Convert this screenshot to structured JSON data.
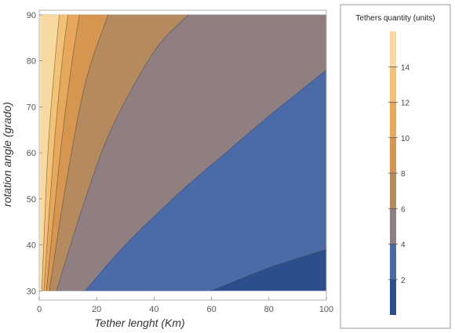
{
  "chart_data": {
    "type": "contour",
    "xlabel": "Tether lenght (Km)",
    "ylabel": "rotation angle (grado)",
    "xlim": [
      0,
      100
    ],
    "ylim": [
      28,
      91
    ],
    "x_ticks": [
      "0",
      "20",
      "40",
      "60",
      "80",
      "100"
    ],
    "y_ticks": [
      "30",
      "40",
      "50",
      "60",
      "70",
      "80",
      "90"
    ],
    "x_tick_values": [
      0,
      20,
      40,
      60,
      80,
      100
    ],
    "y_tick_values": [
      30,
      40,
      50,
      60,
      70,
      80,
      90
    ],
    "legend": {
      "title": "Tethers quantity  (units)",
      "ticks": [
        "2",
        "4",
        "6",
        "8",
        "10",
        "12",
        "14"
      ],
      "tick_values": [
        2,
        4,
        6,
        8,
        10,
        12,
        14
      ],
      "range": [
        0,
        16
      ],
      "placement": "right"
    },
    "bands": [
      {
        "from": 0,
        "to": 2,
        "color": "#2b4f8c"
      },
      {
        "from": 2,
        "to": 4,
        "color": "#4a6aa8"
      },
      {
        "from": 4,
        "to": 6,
        "color": "#8f7f80"
      },
      {
        "from": 6,
        "to": 8,
        "color": "#b58a5e"
      },
      {
        "from": 8,
        "to": 10,
        "color": "#d69650"
      },
      {
        "from": 10,
        "to": 12,
        "color": "#e8a85c"
      },
      {
        "from": 12,
        "to": 14,
        "color": "#f2c277"
      },
      {
        "from": 14,
        "to": 16,
        "color": "#f8daa0"
      }
    ],
    "contour_boundaries": [
      {
        "level": 2,
        "points": [
          [
            60,
            30
          ],
          [
            80,
            35
          ],
          [
            100,
            39
          ]
        ]
      },
      {
        "level": 4,
        "points": [
          [
            16,
            30
          ],
          [
            30,
            40
          ],
          [
            50,
            52
          ],
          [
            65,
            60
          ],
          [
            80,
            68
          ],
          [
            100,
            78
          ]
        ]
      },
      {
        "level": 6,
        "points": [
          [
            6,
            30
          ],
          [
            15,
            48
          ],
          [
            25,
            65
          ],
          [
            40,
            82
          ],
          [
            52,
            90
          ]
        ]
      },
      {
        "level": 8,
        "points": [
          [
            3.5,
            30
          ],
          [
            9,
            52
          ],
          [
            16,
            75
          ],
          [
            24,
            90
          ]
        ]
      },
      {
        "level": 10,
        "points": [
          [
            2.5,
            30
          ],
          [
            7,
            58
          ],
          [
            11,
            78
          ],
          [
            14,
            90
          ]
        ]
      },
      {
        "level": 12,
        "points": [
          [
            1.6,
            30
          ],
          [
            5,
            60
          ],
          [
            8,
            80
          ],
          [
            10,
            90
          ]
        ]
      },
      {
        "level": 14,
        "points": [
          [
            0.9,
            30
          ],
          [
            3,
            60
          ],
          [
            5.5,
            80
          ],
          [
            7,
            90
          ]
        ]
      }
    ]
  }
}
